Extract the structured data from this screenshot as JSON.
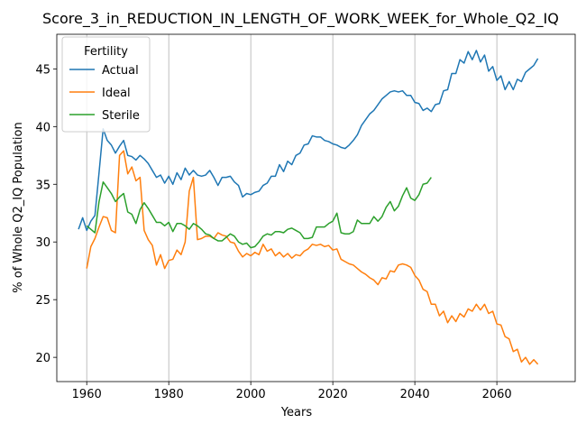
{
  "chart_data": {
    "type": "line",
    "title": "Score_3_in_REDUCTION_IN_LENGTH_OF_WORK_WEEK_for_Whole_Q2_IQ",
    "xlabel": "Years",
    "ylabel": "% of Whole Q2_IQ Population",
    "legend_title": "Fertility",
    "legend": "upper left",
    "grid": "x",
    "xlim": [
      1952.7,
      2079.1
    ],
    "xticks": [
      1960,
      1980,
      2000,
      2020,
      2040,
      2060
    ],
    "ylim": [
      17.9,
      48.0
    ],
    "yticks": [
      20,
      25,
      30,
      35,
      40,
      45
    ],
    "series": [
      {
        "name": "Actual",
        "color": "#1f77b4",
        "x": [
          1958,
          1959,
          1960,
          1961,
          1962,
          1963,
          1964,
          1965,
          1966,
          1967,
          1968,
          1969,
          1970,
          1971,
          1972,
          1973,
          1974,
          1975,
          1976,
          1977,
          1978,
          1979,
          1980,
          1981,
          1982,
          1983,
          1984,
          1985,
          1986,
          1987,
          1988,
          1989,
          1990,
          1991,
          1992,
          1993,
          1994,
          1995,
          1996,
          1997,
          1998,
          1999,
          2000,
          2001,
          2002,
          2003,
          2004,
          2005,
          2006,
          2007,
          2008,
          2009,
          2010,
          2011,
          2012,
          2013,
          2014,
          2015,
          2016,
          2017,
          2018,
          2019,
          2020,
          2021,
          2022,
          2023,
          2024,
          2025,
          2026,
          2027,
          2028,
          2029,
          2030,
          2031,
          2032,
          2033,
          2034,
          2035,
          2036,
          2037,
          2038,
          2039,
          2040,
          2041,
          2042,
          2043,
          2044,
          2045,
          2046,
          2047,
          2048,
          2049,
          2050,
          2051,
          2052,
          2053,
          2054,
          2055,
          2056,
          2057,
          2058,
          2059,
          2060,
          2061,
          2062,
          2063,
          2064,
          2065,
          2066,
          2067,
          2068,
          2069,
          2070
        ],
        "values": [
          31.1,
          32.1,
          31.0,
          31.8,
          32.3,
          36.0,
          39.8,
          38.8,
          38.4,
          37.7,
          38.3,
          38.8,
          37.5,
          37.4,
          37.1,
          37.5,
          37.2,
          36.8,
          36.2,
          35.6,
          35.8,
          35.1,
          35.7,
          35.0,
          36.0,
          35.4,
          36.4,
          35.8,
          36.2,
          35.8,
          35.7,
          35.8,
          36.2,
          35.6,
          34.9,
          35.6,
          35.6,
          35.7,
          35.2,
          34.9,
          33.9,
          34.2,
          34.1,
          34.3,
          34.4,
          34.9,
          35.1,
          35.7,
          35.7,
          36.7,
          36.1,
          37.0,
          36.7,
          37.5,
          37.7,
          38.4,
          38.5,
          39.2,
          39.1,
          39.1,
          38.8,
          38.7,
          38.5,
          38.4,
          38.2,
          38.1,
          38.4,
          38.8,
          39.3,
          40.1,
          40.6,
          41.1,
          41.4,
          41.9,
          42.4,
          42.7,
          43.0,
          43.1,
          43.0,
          43.1,
          42.7,
          42.7,
          42.1,
          42.0,
          41.4,
          41.6,
          41.3,
          41.9,
          42.0,
          43.1,
          43.2,
          44.6,
          44.6,
          45.8,
          45.5,
          46.5,
          45.8,
          46.6,
          45.6,
          46.2,
          44.8,
          45.2,
          44.0,
          44.4,
          43.2,
          43.9,
          43.2,
          44.1,
          43.9,
          44.7,
          45.0,
          45.3,
          45.9
        ]
      },
      {
        "name": "Ideal",
        "color": "#ff7f0e",
        "x": [
          1960,
          1961,
          1962,
          1963,
          1964,
          1965,
          1966,
          1967,
          1968,
          1969,
          1970,
          1971,
          1972,
          1973,
          1974,
          1975,
          1976,
          1977,
          1978,
          1979,
          1980,
          1981,
          1982,
          1983,
          1984,
          1985,
          1986,
          1987,
          1988,
          1989,
          1990,
          1991,
          1992,
          1993,
          1994,
          1995,
          1996,
          1997,
          1998,
          1999,
          2000,
          2001,
          2002,
          2003,
          2004,
          2005,
          2006,
          2007,
          2008,
          2009,
          2010,
          2011,
          2012,
          2013,
          2014,
          2015,
          2016,
          2017,
          2018,
          2019,
          2020,
          2021,
          2022,
          2023,
          2024,
          2025,
          2026,
          2027,
          2028,
          2029,
          2030,
          2031,
          2032,
          2033,
          2034,
          2035,
          2036,
          2037,
          2038,
          2039,
          2040,
          2041,
          2042,
          2043,
          2044,
          2045,
          2046,
          2047,
          2048,
          2049,
          2050,
          2051,
          2052,
          2053,
          2054,
          2055,
          2056,
          2057,
          2058,
          2059,
          2060,
          2061,
          2062,
          2063,
          2064,
          2065,
          2066,
          2067,
          2068,
          2069,
          2070
        ],
        "values": [
          27.7,
          29.6,
          30.3,
          31.3,
          32.2,
          32.1,
          31.0,
          30.8,
          37.5,
          37.9,
          35.9,
          36.5,
          35.3,
          35.6,
          31.0,
          30.2,
          29.7,
          28.0,
          28.9,
          27.7,
          28.4,
          28.5,
          29.3,
          28.9,
          30.0,
          34.4,
          35.6,
          30.2,
          30.3,
          30.5,
          30.5,
          30.3,
          30.8,
          30.6,
          30.5,
          30.0,
          29.9,
          29.2,
          28.7,
          29.0,
          28.8,
          29.1,
          28.9,
          29.8,
          29.2,
          29.4,
          28.8,
          29.1,
          28.7,
          29.0,
          28.6,
          28.9,
          28.8,
          29.2,
          29.4,
          29.8,
          29.7,
          29.8,
          29.6,
          29.7,
          29.3,
          29.4,
          28.5,
          28.3,
          28.1,
          28.0,
          27.7,
          27.4,
          27.2,
          26.9,
          26.7,
          26.3,
          26.9,
          26.8,
          27.5,
          27.4,
          28.0,
          28.1,
          28.0,
          27.8,
          27.1,
          26.7,
          25.9,
          25.7,
          24.6,
          24.6,
          23.6,
          24.0,
          23.0,
          23.6,
          23.1,
          23.8,
          23.5,
          24.2,
          24.0,
          24.6,
          24.1,
          24.6,
          23.8,
          24.0,
          22.9,
          22.8,
          21.8,
          21.6,
          20.5,
          20.7,
          19.6,
          20.0,
          19.4,
          19.8,
          19.4
        ]
      },
      {
        "name": "Sterile",
        "color": "#2ca02c",
        "x": [
          1960,
          1961,
          1962,
          1963,
          1964,
          1965,
          1966,
          1967,
          1968,
          1969,
          1970,
          1971,
          1972,
          1973,
          1974,
          1975,
          1976,
          1977,
          1978,
          1979,
          1980,
          1981,
          1982,
          1983,
          1984,
          1985,
          1986,
          1987,
          1988,
          1989,
          1990,
          1991,
          1992,
          1993,
          1994,
          1995,
          1996,
          1997,
          1998,
          1999,
          2000,
          2001,
          2002,
          2003,
          2004,
          2005,
          2006,
          2007,
          2008,
          2009,
          2010,
          2011,
          2012,
          2013,
          2014,
          2015,
          2016,
          2017,
          2018,
          2019,
          2020,
          2021,
          2022,
          2023,
          2024,
          2025,
          2026,
          2027,
          2028,
          2029,
          2030,
          2031,
          2032,
          2033,
          2034,
          2035,
          2036,
          2037,
          2038,
          2039,
          2040,
          2041,
          2042,
          2043,
          2044
        ],
        "values": [
          31.4,
          31.1,
          30.8,
          33.5,
          35.2,
          34.7,
          34.2,
          33.5,
          33.9,
          34.2,
          32.6,
          32.4,
          31.6,
          32.8,
          33.4,
          32.9,
          32.3,
          31.7,
          31.7,
          31.4,
          31.7,
          30.9,
          31.6,
          31.6,
          31.4,
          31.1,
          31.6,
          31.4,
          31.1,
          30.7,
          30.6,
          30.3,
          30.1,
          30.1,
          30.4,
          30.7,
          30.5,
          30.0,
          29.8,
          29.9,
          29.5,
          29.6,
          30.0,
          30.5,
          30.7,
          30.6,
          30.9,
          30.9,
          30.8,
          31.1,
          31.2,
          31.0,
          30.8,
          30.3,
          30.3,
          30.4,
          31.3,
          31.3,
          31.3,
          31.6,
          31.8,
          32.5,
          30.8,
          30.7,
          30.7,
          30.9,
          31.9,
          31.6,
          31.6,
          31.6,
          32.2,
          31.8,
          32.2,
          33.0,
          33.5,
          32.7,
          33.1,
          34.0,
          34.7,
          33.8,
          33.6,
          34.1,
          35.0,
          35.1,
          35.6
        ]
      }
    ]
  }
}
